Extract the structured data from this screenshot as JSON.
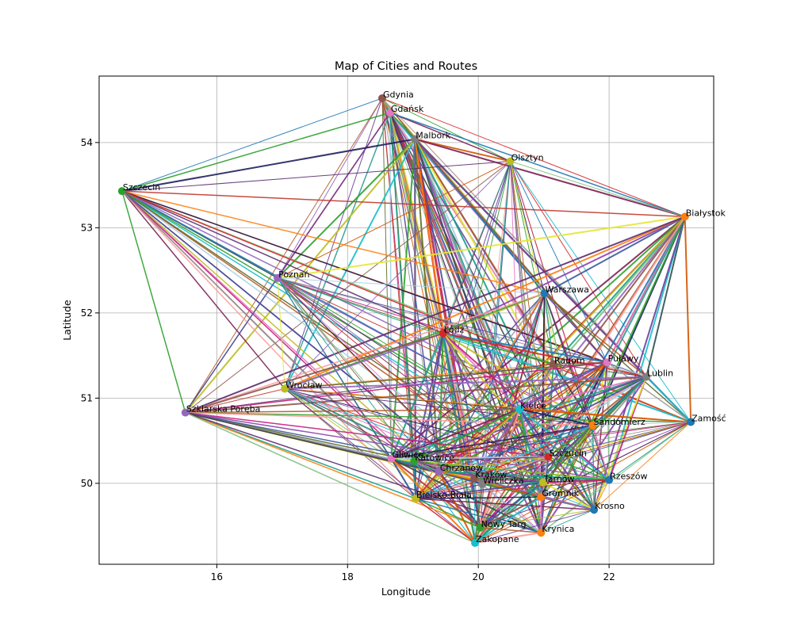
{
  "chart_data": {
    "type": "scatter",
    "title": "Map of Cities and Routes",
    "xlabel": "Longitude",
    "ylabel": "Latitude",
    "xlim": [
      14.2,
      23.6
    ],
    "ylim": [
      49.05,
      54.78
    ],
    "xticks": [
      16,
      18,
      20,
      22
    ],
    "yticks": [
      50,
      51,
      52,
      53,
      54
    ],
    "grid": true,
    "route_colors": [
      "#1f1f5e",
      "#7b1f52",
      "#2ca02c",
      "#1f77b4",
      "#d62728",
      "#9467bd",
      "#8c564b",
      "#e377c2",
      "#17becf",
      "#bcbd22",
      "#2a9d8f",
      "#6a3d9a",
      "#b15928",
      "#33a02c",
      "#fb9a99",
      "#a6cee3",
      "#5f6b2a",
      "#c51b7d",
      "#4d4d9f",
      "#999999",
      "#e6e632",
      "#3b5998",
      "#8e44ad",
      "#16a085",
      "#c0392b",
      "#2f4f4f",
      "#ff7f0e",
      "#5b2c6f",
      "#7fbf7f",
      "#d35400"
    ],
    "cities": [
      {
        "name": "Gdynia",
        "lon": 18.53,
        "lat": 54.52,
        "color": "#8c564b"
      },
      {
        "name": "Gdańsk",
        "lon": 18.65,
        "lat": 54.35,
        "color": "#e377c2"
      },
      {
        "name": "Malbork",
        "lon": 19.03,
        "lat": 54.04,
        "color": "#7f7f7f"
      },
      {
        "name": "Olsztyn",
        "lon": 20.49,
        "lat": 53.78,
        "color": "#bcbd22"
      },
      {
        "name": "Szczecin",
        "lon": 14.55,
        "lat": 53.43,
        "color": "#2ca02c"
      },
      {
        "name": "Białystok",
        "lon": 23.16,
        "lat": 53.13,
        "color": "#ff7f0e"
      },
      {
        "name": "Poznań",
        "lon": 16.93,
        "lat": 52.41,
        "color": "#9467bd"
      },
      {
        "name": "Warszawa",
        "lon": 21.01,
        "lat": 52.23,
        "color": "#1f77b4"
      },
      {
        "name": "Łódź",
        "lon": 19.46,
        "lat": 51.76,
        "color": "#d62728"
      },
      {
        "name": "Radom",
        "lon": 21.15,
        "lat": 51.4,
        "color": "#8c564b"
      },
      {
        "name": "Puławy",
        "lon": 21.97,
        "lat": 51.42,
        "color": "#e377c2"
      },
      {
        "name": "Lublin",
        "lon": 22.57,
        "lat": 51.25,
        "color": "#7f7f7f"
      },
      {
        "name": "Wrocław",
        "lon": 17.04,
        "lat": 51.11,
        "color": "#bcbd22"
      },
      {
        "name": "Szklarska Poręba",
        "lon": 15.52,
        "lat": 50.83,
        "color": "#9467bd"
      },
      {
        "name": "Kielce",
        "lon": 20.63,
        "lat": 50.87,
        "color": "#17becf"
      },
      {
        "name": "Zamość",
        "lon": 23.25,
        "lat": 50.72,
        "color": "#1f77b4"
      },
      {
        "name": "Sandomierz",
        "lon": 21.75,
        "lat": 50.68,
        "color": "#ff7f0e"
      },
      {
        "name": "Gliwice",
        "lon": 18.67,
        "lat": 50.29,
        "color": "#e377c2"
      },
      {
        "name": "Katowice",
        "lon": 19.02,
        "lat": 50.26,
        "color": "#2ca02c"
      },
      {
        "name": "Szczucin",
        "lon": 21.07,
        "lat": 50.31,
        "color": "#d62728"
      },
      {
        "name": "Chrzanów",
        "lon": 19.4,
        "lat": 50.14,
        "color": "#9467bd"
      },
      {
        "name": "Kraków",
        "lon": 19.94,
        "lat": 50.06,
        "color": "#8c564b"
      },
      {
        "name": "Wieliczka",
        "lon": 20.06,
        "lat": 49.99,
        "color": "#7f7f7f"
      },
      {
        "name": "Tarnów",
        "lon": 20.99,
        "lat": 50.01,
        "color": "#bcbd22"
      },
      {
        "name": "Rzeszów",
        "lon": 22.0,
        "lat": 50.04,
        "color": "#1f77b4"
      },
      {
        "name": "Bielsko-Biała",
        "lon": 19.04,
        "lat": 49.82,
        "color": "#bcbd22"
      },
      {
        "name": "Gromnik",
        "lon": 20.96,
        "lat": 49.84,
        "color": "#ff7f0e"
      },
      {
        "name": "Krosno",
        "lon": 21.77,
        "lat": 49.69,
        "color": "#1f77b4"
      },
      {
        "name": "Nowy Targ",
        "lon": 20.03,
        "lat": 49.48,
        "color": "#2ca02c"
      },
      {
        "name": "Krynica",
        "lon": 20.96,
        "lat": 49.42,
        "color": "#ff7f0e"
      },
      {
        "name": "Zakopane",
        "lon": 19.95,
        "lat": 49.3,
        "color": "#17becf"
      }
    ]
  }
}
